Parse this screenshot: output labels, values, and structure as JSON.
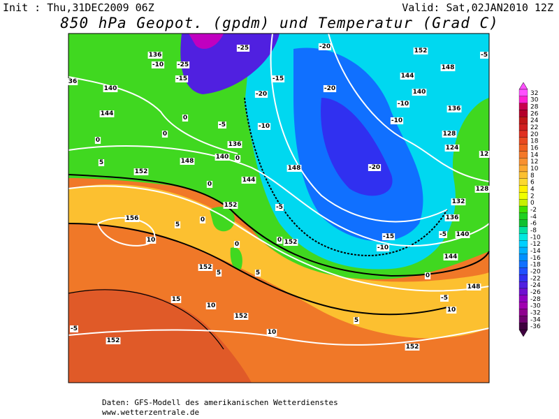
{
  "header": {
    "init": "Init : Thu,31DEC2009 06Z",
    "valid": "Valid: Sat,02JAN2010 12Z",
    "title": "850 hPa Geopot. (gpdm) und Temperatur (Grad C)"
  },
  "colorbar": {
    "labels": [
      32,
      30,
      28,
      26,
      24,
      22,
      20,
      18,
      16,
      14,
      12,
      10,
      8,
      6,
      4,
      2,
      0,
      -2,
      -4,
      -6,
      -8,
      -10,
      -12,
      -14,
      -16,
      -18,
      -20,
      -22,
      -24,
      -26,
      -28,
      -30,
      -32,
      -34,
      -36
    ],
    "colors": [
      "#ff50ff",
      "#ff20d0",
      "#c8004e",
      "#b4002a",
      "#c01818",
      "#d02020",
      "#e03020",
      "#e84a20",
      "#f06020",
      "#f47828",
      "#f89030",
      "#fca830",
      "#fcc030",
      "#fcd830",
      "#fff000",
      "#f0ff00",
      "#c8f000",
      "#40e000",
      "#20d020",
      "#10c030",
      "#00e0a0",
      "#00e8e0",
      "#00d0ff",
      "#00b0ff",
      "#0090ff",
      "#1070ff",
      "#2050ff",
      "#3030f0",
      "#5020e0",
      "#7010d0",
      "#9000c0",
      "#a000b0",
      "#900090",
      "#700070",
      "#400040"
    ]
  },
  "map": {
    "contour_labels": [
      136,
      -10,
      -25,
      -15,
      -25,
      -20,
      152,
      -5,
      148,
      36,
      140,
      -15,
      -20,
      -20,
      144,
      140,
      -10,
      136,
      144,
      0,
      -5,
      -10,
      -10,
      128,
      0,
      0,
      136,
      124,
      12,
      5,
      148,
      140,
      0,
      148,
      -20,
      152,
      144,
      128,
      0,
      152,
      -5,
      132,
      156,
      5,
      0,
      136,
      10,
      0,
      0,
      152,
      -15,
      -5,
      140,
      -10,
      152,
      5,
      5,
      144,
      0,
      148,
      15,
      10,
      -5,
      10,
      152,
      5,
      10,
      -5,
      152,
      152
    ]
  },
  "footer": {
    "source": "Daten: GFS-Modell des amerikanischen Wetterdienstes",
    "site": "www.wetterzentrale.de"
  }
}
